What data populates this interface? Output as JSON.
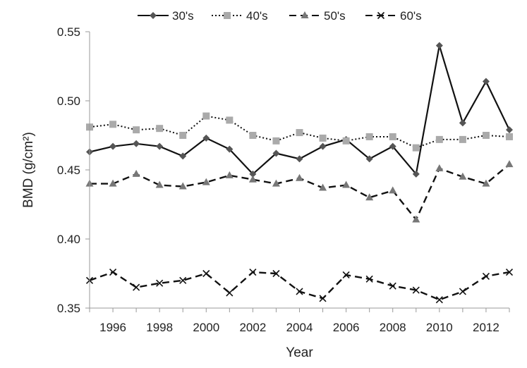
{
  "chart_data": {
    "type": "line",
    "title": "",
    "xlabel": "Year",
    "ylabel": "BMD (g/cm²)",
    "xlim": [
      1995,
      2013
    ],
    "ylim": [
      0.35,
      0.55
    ],
    "x": [
      1995,
      1996,
      1997,
      1998,
      1999,
      2000,
      2001,
      2002,
      2003,
      2004,
      2005,
      2006,
      2007,
      2008,
      2009,
      2010,
      2011,
      2012,
      2013
    ],
    "x_ticks": [
      "1996",
      "1998",
      "2000",
      "2002",
      "2004",
      "2006",
      "2008",
      "2010",
      "2012"
    ],
    "y_ticks": [
      "0.35",
      "0.40",
      "0.45",
      "0.50",
      "0.55"
    ],
    "grid": false,
    "legend_position": "top",
    "series": [
      {
        "name": "30's",
        "color": "#555555",
        "line": "solid",
        "marker": "diamond",
        "values": [
          0.463,
          0.467,
          0.469,
          0.467,
          0.46,
          0.473,
          0.465,
          0.447,
          0.462,
          0.458,
          0.467,
          0.472,
          0.458,
          0.467,
          0.447,
          0.54,
          0.484,
          0.514,
          0.479
        ]
      },
      {
        "name": "40's",
        "color": "#aaaaaa",
        "line": "dotted",
        "marker": "square",
        "values": [
          0.481,
          0.483,
          0.479,
          0.48,
          0.475,
          0.489,
          0.486,
          0.475,
          0.471,
          0.477,
          0.473,
          0.471,
          0.474,
          0.474,
          0.466,
          0.472,
          0.472,
          0.475,
          0.474
        ]
      },
      {
        "name": "50's",
        "color": "#777777",
        "line": "dashed",
        "marker": "triangle",
        "values": [
          0.44,
          0.44,
          0.447,
          0.439,
          0.438,
          0.441,
          0.446,
          0.443,
          0.44,
          0.444,
          0.437,
          0.439,
          0.43,
          0.435,
          0.414,
          0.451,
          0.445,
          0.44,
          0.454
        ]
      },
      {
        "name": "60's",
        "color": "#111111",
        "line": "dashed",
        "marker": "cross",
        "values": [
          0.37,
          0.376,
          0.365,
          0.368,
          0.37,
          0.375,
          0.361,
          0.376,
          0.375,
          0.362,
          0.357,
          0.374,
          0.371,
          0.366,
          0.363,
          0.356,
          0.362,
          0.373,
          0.376
        ]
      }
    ]
  }
}
